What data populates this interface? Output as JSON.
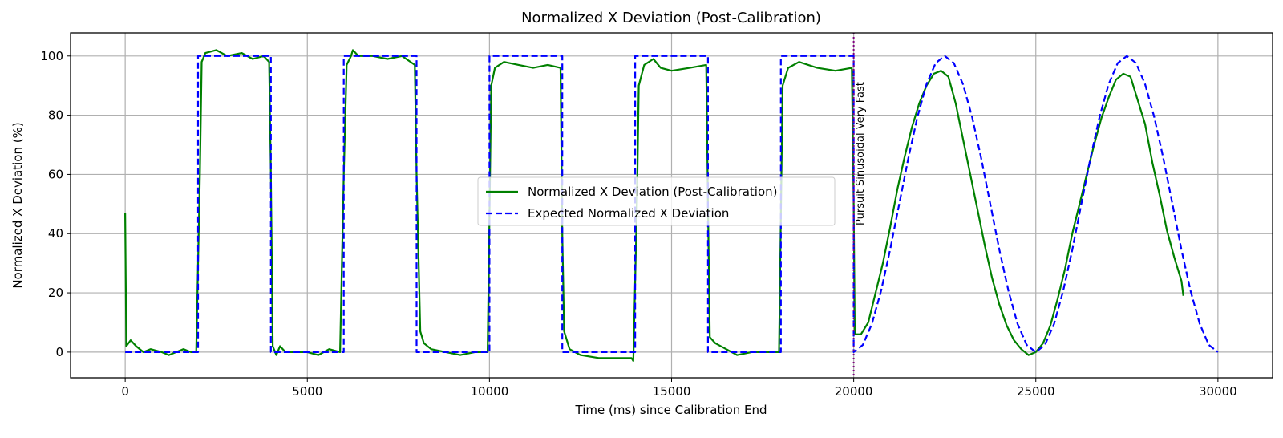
{
  "chart_data": {
    "type": "line",
    "title": "Normalized X Deviation (Post-Calibration)",
    "xlabel": "Time (ms) since Calibration End",
    "ylabel": "Normalized X Deviation (%)",
    "xlim": [
      -1500,
      31500
    ],
    "ylim": [
      -8.7,
      107.8
    ],
    "xticks": [
      0,
      5000,
      10000,
      15000,
      20000,
      25000,
      30000
    ],
    "yticks": [
      0,
      20,
      40,
      60,
      80,
      100
    ],
    "grid": true,
    "legend_position": "center",
    "series": [
      {
        "name": "Normalized X Deviation (Post-Calibration)",
        "color": "#008000",
        "style": "solid",
        "points": [
          [
            0,
            47
          ],
          [
            30,
            2
          ],
          [
            150,
            4
          ],
          [
            300,
            2
          ],
          [
            500,
            0
          ],
          [
            700,
            1
          ],
          [
            1000,
            0
          ],
          [
            1200,
            -1
          ],
          [
            1400,
            0
          ],
          [
            1600,
            1
          ],
          [
            1800,
            0
          ],
          [
            1950,
            0
          ],
          [
            2050,
            60
          ],
          [
            2100,
            98
          ],
          [
            2200,
            101
          ],
          [
            2500,
            102
          ],
          [
            2800,
            100
          ],
          [
            3200,
            101
          ],
          [
            3500,
            99
          ],
          [
            3800,
            100
          ],
          [
            3950,
            98
          ],
          [
            4000,
            60
          ],
          [
            4050,
            2
          ],
          [
            4150,
            -1
          ],
          [
            4250,
            2
          ],
          [
            4400,
            0
          ],
          [
            4700,
            0
          ],
          [
            5000,
            0
          ],
          [
            5300,
            -1
          ],
          [
            5600,
            1
          ],
          [
            5900,
            0
          ],
          [
            6000,
            60
          ],
          [
            6080,
            97
          ],
          [
            6200,
            100
          ],
          [
            6250,
            102
          ],
          [
            6400,
            100
          ],
          [
            6800,
            100
          ],
          [
            7200,
            99
          ],
          [
            7600,
            100
          ],
          [
            7950,
            97
          ],
          [
            8000,
            60
          ],
          [
            8100,
            7
          ],
          [
            8200,
            3
          ],
          [
            8400,
            1
          ],
          [
            8800,
            0
          ],
          [
            9200,
            -1
          ],
          [
            9600,
            0
          ],
          [
            9950,
            0
          ],
          [
            10050,
            90
          ],
          [
            10150,
            96
          ],
          [
            10400,
            98
          ],
          [
            10800,
            97
          ],
          [
            11200,
            96
          ],
          [
            11600,
            97
          ],
          [
            11950,
            96
          ],
          [
            12000,
            40
          ],
          [
            12050,
            7
          ],
          [
            12200,
            1
          ],
          [
            12500,
            -1
          ],
          [
            13000,
            -2
          ],
          [
            13500,
            -2
          ],
          [
            13900,
            -2
          ],
          [
            13950,
            -3
          ],
          [
            14050,
            50
          ],
          [
            14100,
            90
          ],
          [
            14250,
            97
          ],
          [
            14500,
            99
          ],
          [
            14700,
            96
          ],
          [
            15000,
            95
          ],
          [
            15500,
            96
          ],
          [
            15950,
            97
          ],
          [
            16000,
            50
          ],
          [
            16050,
            5
          ],
          [
            16200,
            3
          ],
          [
            16500,
            1
          ],
          [
            16800,
            -1
          ],
          [
            17200,
            0
          ],
          [
            17600,
            0
          ],
          [
            17950,
            0
          ],
          [
            18050,
            90
          ],
          [
            18200,
            96
          ],
          [
            18500,
            98
          ],
          [
            19000,
            96
          ],
          [
            19500,
            95
          ],
          [
            19950,
            96
          ],
          [
            20000,
            50
          ],
          [
            20030,
            6
          ],
          [
            20200,
            6
          ],
          [
            20400,
            10
          ],
          [
            20600,
            20
          ],
          [
            20800,
            30
          ],
          [
            21000,
            42
          ],
          [
            21200,
            55
          ],
          [
            21400,
            66
          ],
          [
            21600,
            76
          ],
          [
            21800,
            84
          ],
          [
            22000,
            90
          ],
          [
            22200,
            94
          ],
          [
            22400,
            95
          ],
          [
            22600,
            93
          ],
          [
            22800,
            84
          ],
          [
            23000,
            72
          ],
          [
            23200,
            60
          ],
          [
            23400,
            48
          ],
          [
            23600,
            36
          ],
          [
            23800,
            25
          ],
          [
            24000,
            16
          ],
          [
            24200,
            9
          ],
          [
            24400,
            4
          ],
          [
            24600,
            1
          ],
          [
            24800,
            -1
          ],
          [
            25000,
            0
          ],
          [
            25200,
            3
          ],
          [
            25400,
            9
          ],
          [
            25600,
            18
          ],
          [
            25800,
            28
          ],
          [
            26000,
            40
          ],
          [
            26200,
            50
          ],
          [
            26400,
            60
          ],
          [
            26600,
            70
          ],
          [
            26800,
            79
          ],
          [
            27000,
            86
          ],
          [
            27200,
            92
          ],
          [
            27400,
            94
          ],
          [
            27600,
            93
          ],
          [
            27800,
            85
          ],
          [
            28000,
            77
          ],
          [
            28200,
            64
          ],
          [
            28400,
            53
          ],
          [
            28600,
            41
          ],
          [
            28800,
            32
          ],
          [
            29000,
            24
          ],
          [
            29050,
            19
          ]
        ]
      },
      {
        "name": "Expected Normalized X Deviation",
        "color": "#0000ff",
        "style": "dashed",
        "points": [
          [
            0,
            0
          ],
          [
            2000,
            0
          ],
          [
            2000,
            100
          ],
          [
            4000,
            100
          ],
          [
            4000,
            0
          ],
          [
            6000,
            0
          ],
          [
            6000,
            100
          ],
          [
            8000,
            100
          ],
          [
            8000,
            0
          ],
          [
            10000,
            0
          ],
          [
            10000,
            100
          ],
          [
            12000,
            100
          ],
          [
            12000,
            0
          ],
          [
            14000,
            0
          ],
          [
            14000,
            100
          ],
          [
            16000,
            100
          ],
          [
            16000,
            0
          ],
          [
            18000,
            0
          ],
          [
            18000,
            100
          ],
          [
            20000,
            100
          ],
          [
            20000,
            0
          ],
          [
            20250,
            2.4
          ],
          [
            20500,
            9.5
          ],
          [
            20750,
            20.6
          ],
          [
            21000,
            34.5
          ],
          [
            21250,
            50
          ],
          [
            21500,
            65.5
          ],
          [
            21750,
            79.4
          ],
          [
            22000,
            90.5
          ],
          [
            22250,
            97.6
          ],
          [
            22500,
            100
          ],
          [
            22750,
            97.6
          ],
          [
            23000,
            90.5
          ],
          [
            23250,
            79.4
          ],
          [
            23500,
            65.5
          ],
          [
            23750,
            50
          ],
          [
            24000,
            34.5
          ],
          [
            24250,
            20.6
          ],
          [
            24500,
            9.5
          ],
          [
            24750,
            2.4
          ],
          [
            25000,
            0
          ],
          [
            25250,
            2.4
          ],
          [
            25500,
            9.5
          ],
          [
            25750,
            20.6
          ],
          [
            26000,
            34.5
          ],
          [
            26250,
            50
          ],
          [
            26500,
            65.5
          ],
          [
            26750,
            79.4
          ],
          [
            27000,
            90.5
          ],
          [
            27250,
            97.6
          ],
          [
            27500,
            100
          ],
          [
            27750,
            97.6
          ],
          [
            28000,
            90.5
          ],
          [
            28250,
            79.4
          ],
          [
            28500,
            65.5
          ],
          [
            28750,
            50
          ],
          [
            29000,
            34.5
          ],
          [
            29250,
            20.6
          ],
          [
            29500,
            9.5
          ],
          [
            29750,
            2.4
          ],
          [
            30000,
            0
          ]
        ]
      }
    ],
    "vline": {
      "x": 20000,
      "color": "#800080",
      "style": "dotted"
    },
    "annotation": {
      "text": "Pursuit Sinusoidal Very Fast",
      "x": 20000,
      "rotation": "vertical"
    }
  }
}
